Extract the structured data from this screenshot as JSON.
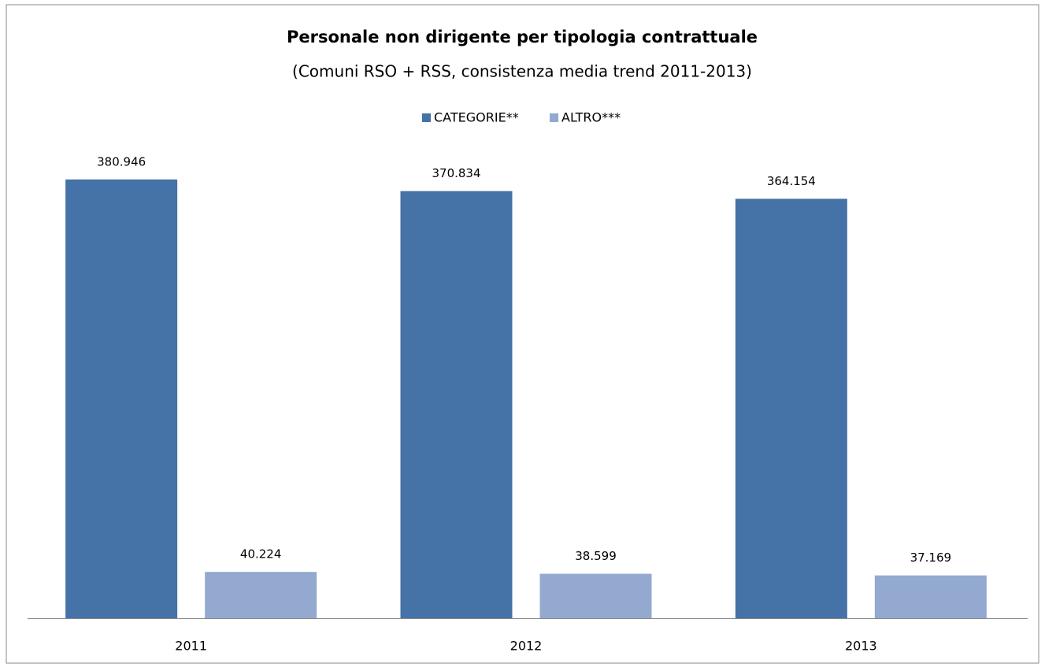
{
  "chart_data": {
    "type": "bar",
    "title": "Personale non dirigente per tipologia contrattuale",
    "subtitle": "(Comuni RSO + RSS, consistenza media trend 2011-2013)",
    "categories": [
      "2011",
      "2012",
      "2013"
    ],
    "series": [
      {
        "name": "CATEGORIE**",
        "color": "#4572a7",
        "values": [
          380946,
          370834,
          364154
        ],
        "value_labels": [
          "380.946",
          "370.834",
          "364.154"
        ]
      },
      {
        "name": "ALTRO***",
        "color": "#93a9cf",
        "values": [
          40224,
          38599,
          37169
        ],
        "value_labels": [
          "40.224",
          "38.599",
          "37.169"
        ]
      }
    ],
    "ylim": [
      0,
      400000
    ],
    "legend": "top"
  }
}
